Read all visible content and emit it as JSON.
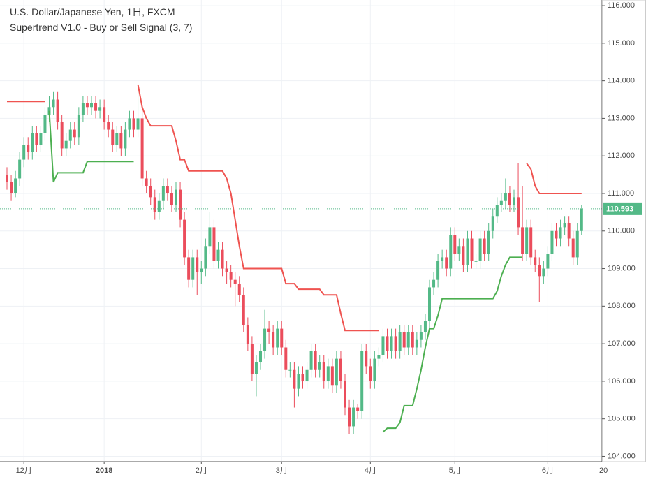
{
  "chart_data": {
    "type": "candlestick",
    "title": "U.S. Dollar/Japanese Yen, 1日, FXCM",
    "subtitle": "Supertrend V1.0 - Buy or Sell Signal (3, 7)",
    "categories": [
      null,
      null,
      null,
      null,
      "12月",
      null,
      null,
      null,
      null,
      null,
      null,
      null,
      null,
      null,
      null,
      null,
      null,
      null,
      null,
      null,
      null,
      null,
      null,
      "2018",
      null,
      null,
      null,
      null,
      null,
      null,
      null,
      null,
      null,
      null,
      null,
      null,
      null,
      null,
      null,
      null,
      null,
      null,
      null,
      null,
      null,
      null,
      "2月",
      null,
      null,
      null,
      null,
      null,
      null,
      null,
      null,
      null,
      null,
      null,
      null,
      null,
      null,
      null,
      null,
      null,
      null,
      "3月",
      null,
      null,
      null,
      null,
      null,
      null,
      null,
      null,
      null,
      null,
      null,
      null,
      null,
      null,
      null,
      null,
      null,
      null,
      null,
      null,
      "4月",
      null,
      null,
      null,
      null,
      null,
      null,
      null,
      null,
      null,
      null,
      null,
      null,
      null,
      null,
      null,
      null,
      null,
      null,
      null,
      "5月",
      null,
      null,
      null,
      null,
      null,
      null,
      null,
      null,
      null,
      null,
      null,
      null,
      null,
      null,
      null,
      null,
      null,
      null,
      null,
      null,
      null,
      "6月",
      null,
      null,
      null,
      null,
      null,
      null,
      null,
      null
    ],
    "x_edge_label": "20",
    "ohlc": [
      [
        111.5,
        111.7,
        111.1,
        111.3
      ],
      [
        111.3,
        111.5,
        110.8,
        111.0
      ],
      [
        111.0,
        111.6,
        110.9,
        111.4
      ],
      [
        111.4,
        112.1,
        111.2,
        111.9
      ],
      [
        111.9,
        112.5,
        111.7,
        112.3
      ],
      [
        112.3,
        112.5,
        111.9,
        112.1
      ],
      [
        112.1,
        112.8,
        111.9,
        112.6
      ],
      [
        112.6,
        112.8,
        112.1,
        112.3
      ],
      [
        112.3,
        112.8,
        112.1,
        112.6
      ],
      [
        112.6,
        113.3,
        112.4,
        113.1
      ],
      [
        113.1,
        113.6,
        112.9,
        113.3
      ],
      [
        113.3,
        113.7,
        113.1,
        113.5
      ],
      [
        113.5,
        113.7,
        112.7,
        112.9
      ],
      [
        112.9,
        113.1,
        112.0,
        112.2
      ],
      [
        112.2,
        112.6,
        112.0,
        112.4
      ],
      [
        112.4,
        112.9,
        112.2,
        112.7
      ],
      [
        112.7,
        112.9,
        112.3,
        112.5
      ],
      [
        112.5,
        113.3,
        112.3,
        113.1
      ],
      [
        113.1,
        113.6,
        112.9,
        113.4
      ],
      [
        113.4,
        113.6,
        113.1,
        113.3
      ],
      [
        113.3,
        113.6,
        113.1,
        113.4
      ],
      [
        113.4,
        113.6,
        113.0,
        113.2
      ],
      [
        113.2,
        113.5,
        113.0,
        113.3
      ],
      [
        113.3,
        113.5,
        112.7,
        112.9
      ],
      [
        112.9,
        113.1,
        112.5,
        112.7
      ],
      [
        112.7,
        112.9,
        112.1,
        112.3
      ],
      [
        112.3,
        112.8,
        112.1,
        112.6
      ],
      [
        112.6,
        112.8,
        112.0,
        112.2
      ],
      [
        112.2,
        112.9,
        112.0,
        112.7
      ],
      [
        112.7,
        113.2,
        112.5,
        113.0
      ],
      [
        113.0,
        113.2,
        112.5,
        112.7
      ],
      [
        112.7,
        113.9,
        112.5,
        113.0
      ],
      [
        113.0,
        113.2,
        111.2,
        111.4
      ],
      [
        111.4,
        111.6,
        111.0,
        111.2
      ],
      [
        111.2,
        111.4,
        110.7,
        110.9
      ],
      [
        110.9,
        111.1,
        110.3,
        110.5
      ],
      [
        110.5,
        111.0,
        110.3,
        110.8
      ],
      [
        110.8,
        111.4,
        110.6,
        111.2
      ],
      [
        111.2,
        111.4,
        110.8,
        111.0
      ],
      [
        111.0,
        111.2,
        110.5,
        110.7
      ],
      [
        110.7,
        111.3,
        110.5,
        111.1
      ],
      [
        111.1,
        111.3,
        110.1,
        110.3
      ],
      [
        110.3,
        110.5,
        109.1,
        109.3
      ],
      [
        109.3,
        109.5,
        108.5,
        108.7
      ],
      [
        108.7,
        109.5,
        108.5,
        109.3
      ],
      [
        109.3,
        109.5,
        108.3,
        108.9
      ],
      [
        108.9,
        109.2,
        108.6,
        109.0
      ],
      [
        109.0,
        109.8,
        108.8,
        109.6
      ],
      [
        109.6,
        110.5,
        109.4,
        110.1
      ],
      [
        110.1,
        110.3,
        109.0,
        109.2
      ],
      [
        109.2,
        109.7,
        109.0,
        109.5
      ],
      [
        109.5,
        109.7,
        108.8,
        109.0
      ],
      [
        109.0,
        109.2,
        108.6,
        108.9
      ],
      [
        108.9,
        109.1,
        108.5,
        108.7
      ],
      [
        108.7,
        108.9,
        108.0,
        108.6
      ],
      [
        108.6,
        108.8,
        108.1,
        108.3
      ],
      [
        108.3,
        108.5,
        107.3,
        107.5
      ],
      [
        107.5,
        107.7,
        106.8,
        107.0
      ],
      [
        107.0,
        107.2,
        106.0,
        106.2
      ],
      [
        106.2,
        106.7,
        105.6,
        106.5
      ],
      [
        106.5,
        107.0,
        106.3,
        106.8
      ],
      [
        106.8,
        107.9,
        106.6,
        107.4
      ],
      [
        107.4,
        107.6,
        107.0,
        107.3
      ],
      [
        107.3,
        107.5,
        106.7,
        106.9
      ],
      [
        106.9,
        107.6,
        106.7,
        107.4
      ],
      [
        107.4,
        107.6,
        106.7,
        106.9
      ],
      [
        106.9,
        107.1,
        106.1,
        106.3
      ],
      [
        106.3,
        106.5,
        106.1,
        106.3
      ],
      [
        106.3,
        106.5,
        105.3,
        105.8
      ],
      [
        105.8,
        106.4,
        105.6,
        106.2
      ],
      [
        106.2,
        106.4,
        105.8,
        106.0
      ],
      [
        106.0,
        106.5,
        105.8,
        106.3
      ],
      [
        106.3,
        107.0,
        106.1,
        106.8
      ],
      [
        106.8,
        107.0,
        106.1,
        106.3
      ],
      [
        106.3,
        106.7,
        106.1,
        106.5
      ],
      [
        106.5,
        106.7,
        105.8,
        106.0
      ],
      [
        106.0,
        106.6,
        105.8,
        106.4
      ],
      [
        106.4,
        106.6,
        105.7,
        105.9
      ],
      [
        105.9,
        106.8,
        105.7,
        106.6
      ],
      [
        106.6,
        106.8,
        105.8,
        106.0
      ],
      [
        106.0,
        106.2,
        105.1,
        105.3
      ],
      [
        105.3,
        105.5,
        104.6,
        104.8
      ],
      [
        104.8,
        105.5,
        104.6,
        105.3
      ],
      [
        105.3,
        105.4,
        105.0,
        105.2
      ],
      [
        105.2,
        107.0,
        105.0,
        106.8
      ],
      [
        106.8,
        107.0,
        106.2,
        106.4
      ],
      [
        106.4,
        106.6,
        105.8,
        106.0
      ],
      [
        106.0,
        106.8,
        105.8,
        106.6
      ],
      [
        106.6,
        106.9,
        106.4,
        106.7
      ],
      [
        106.7,
        107.4,
        106.5,
        107.2
      ],
      [
        107.2,
        107.4,
        106.6,
        106.8
      ],
      [
        106.8,
        107.4,
        106.6,
        107.2
      ],
      [
        107.2,
        107.4,
        106.6,
        106.8
      ],
      [
        106.8,
        107.5,
        106.6,
        107.3
      ],
      [
        107.3,
        107.5,
        106.7,
        106.9
      ],
      [
        106.9,
        107.5,
        106.7,
        107.3
      ],
      [
        107.3,
        107.5,
        106.7,
        106.9
      ],
      [
        106.9,
        107.3,
        106.7,
        107.1
      ],
      [
        107.1,
        107.5,
        106.9,
        107.3
      ],
      [
        107.3,
        107.8,
        107.1,
        107.6
      ],
      [
        107.6,
        108.7,
        107.4,
        108.5
      ],
      [
        108.5,
        108.9,
        108.3,
        108.7
      ],
      [
        108.7,
        109.4,
        108.5,
        109.2
      ],
      [
        109.2,
        109.5,
        109.0,
        109.3
      ],
      [
        109.3,
        109.5,
        108.8,
        109.0
      ],
      [
        109.0,
        110.1,
        108.8,
        109.9
      ],
      [
        109.9,
        110.1,
        109.2,
        109.4
      ],
      [
        109.4,
        109.8,
        109.2,
        109.6
      ],
      [
        109.6,
        109.8,
        108.9,
        109.1
      ],
      [
        109.1,
        110.0,
        108.9,
        109.8
      ],
      [
        109.8,
        110.0,
        109.0,
        109.2
      ],
      [
        109.2,
        109.4,
        109.0,
        109.2
      ],
      [
        109.2,
        110.0,
        109.0,
        109.8
      ],
      [
        109.8,
        110.0,
        109.2,
        109.4
      ],
      [
        109.4,
        110.2,
        109.2,
        110.0
      ],
      [
        110.0,
        110.6,
        109.8,
        110.4
      ],
      [
        110.4,
        110.9,
        110.2,
        110.7
      ],
      [
        110.7,
        111.0,
        110.5,
        110.8
      ],
      [
        110.8,
        111.4,
        110.6,
        111.0
      ],
      [
        111.0,
        111.2,
        110.5,
        110.7
      ],
      [
        110.7,
        111.1,
        110.5,
        110.9
      ],
      [
        110.9,
        111.8,
        109.9,
        110.1
      ],
      [
        110.1,
        111.2,
        109.2,
        109.4
      ],
      [
        109.4,
        110.3,
        109.2,
        110.1
      ],
      [
        110.1,
        110.3,
        109.1,
        109.3
      ],
      [
        109.3,
        109.5,
        108.9,
        109.1
      ],
      [
        109.1,
        109.3,
        108.1,
        108.8
      ],
      [
        108.8,
        109.2,
        108.6,
        109.0
      ],
      [
        109.0,
        109.6,
        108.8,
        109.4
      ],
      [
        109.4,
        110.2,
        109.2,
        110.0
      ],
      [
        110.0,
        110.2,
        109.6,
        109.8
      ],
      [
        109.8,
        110.3,
        109.6,
        110.1
      ],
      [
        110.1,
        110.4,
        109.9,
        110.2
      ],
      [
        110.2,
        110.4,
        109.6,
        109.8
      ],
      [
        109.8,
        110.0,
        109.1,
        109.3
      ],
      [
        109.3,
        110.2,
        109.1,
        110.0
      ],
      [
        110.0,
        110.7,
        109.9,
        110.59
      ]
    ],
    "up_color": "#53b987",
    "down_color": "#eb4d5c",
    "upper_band": {
      "color": "#ef5350",
      "values": [
        113.45,
        113.45,
        113.45,
        113.45,
        113.45,
        113.45,
        113.45,
        113.45,
        113.45,
        113.45,
        null,
        null,
        null,
        null,
        null,
        null,
        null,
        null,
        null,
        null,
        null,
        null,
        null,
        null,
        null,
        null,
        null,
        null,
        null,
        null,
        null,
        113.9,
        113.3,
        113.0,
        112.8,
        112.8,
        112.8,
        112.8,
        112.8,
        112.8,
        112.4,
        111.9,
        111.9,
        111.6,
        111.6,
        111.6,
        111.6,
        111.6,
        111.6,
        111.6,
        111.6,
        111.6,
        111.4,
        111.0,
        110.3,
        109.6,
        109.0,
        109.0,
        109.0,
        109.0,
        109.0,
        109.0,
        109.0,
        109.0,
        109.0,
        109.0,
        108.6,
        108.6,
        108.6,
        108.45,
        108.45,
        108.45,
        108.45,
        108.45,
        108.45,
        108.3,
        108.3,
        108.3,
        108.3,
        107.8,
        107.35,
        107.35,
        107.35,
        107.35,
        107.35,
        107.35,
        107.35,
        107.35,
        107.35,
        null,
        null,
        null,
        null,
        null,
        null,
        null,
        null,
        null,
        null,
        null,
        null,
        null,
        null,
        null,
        null,
        null,
        null,
        null,
        null,
        null,
        null,
        null,
        null,
        null,
        null,
        null,
        null,
        null,
        null,
        null,
        null,
        null,
        null,
        111.8,
        111.65,
        111.2,
        111.0,
        111.0,
        111.0,
        111.0,
        111.0,
        111.0,
        111.0,
        111.0,
        111.0,
        111.0,
        111.0
      ]
    },
    "lower_band": {
      "color": "#4caf50",
      "values": [
        null,
        null,
        null,
        null,
        null,
        null,
        null,
        null,
        null,
        null,
        113.2,
        111.3,
        111.55,
        111.55,
        111.55,
        111.55,
        111.55,
        111.55,
        111.55,
        111.85,
        111.85,
        111.85,
        111.85,
        111.85,
        111.85,
        111.85,
        111.85,
        111.85,
        111.85,
        111.85,
        111.85,
        null,
        null,
        null,
        null,
        null,
        null,
        null,
        null,
        null,
        null,
        null,
        null,
        null,
        null,
        null,
        null,
        null,
        null,
        null,
        null,
        null,
        null,
        null,
        null,
        null,
        null,
        null,
        null,
        null,
        null,
        null,
        null,
        null,
        null,
        null,
        null,
        null,
        null,
        null,
        null,
        null,
        null,
        null,
        null,
        null,
        null,
        null,
        null,
        null,
        null,
        null,
        null,
        null,
        null,
        null,
        null,
        null,
        null,
        104.65,
        104.75,
        104.75,
        104.75,
        104.9,
        105.35,
        105.35,
        105.35,
        105.8,
        106.3,
        106.9,
        107.4,
        107.4,
        107.75,
        108.2,
        108.2,
        108.2,
        108.2,
        108.2,
        108.2,
        108.2,
        108.2,
        108.2,
        108.2,
        108.2,
        108.2,
        108.2,
        108.4,
        108.8,
        109.1,
        109.3,
        109.3,
        109.3,
        109.3,
        null,
        null,
        null,
        null,
        null,
        null,
        null,
        null,
        null,
        null,
        null,
        null,
        null,
        null
      ]
    },
    "current_price": {
      "value": 110.593,
      "label": "110.593",
      "color": "#53b987"
    },
    "ylim": [
      103.86,
      116.15
    ],
    "yticks": [
      {
        "value": 104,
        "label": "104.000"
      },
      {
        "value": 105,
        "label": "105.000"
      },
      {
        "value": 106,
        "label": "106.000"
      },
      {
        "value": 107,
        "label": "107.000"
      },
      {
        "value": 108,
        "label": "108.000"
      },
      {
        "value": 109,
        "label": "109.000"
      },
      {
        "value": 110,
        "label": "110.000"
      },
      {
        "value": 111,
        "label": "111.000"
      },
      {
        "value": 112,
        "label": "112.000"
      },
      {
        "value": 113,
        "label": "113.000"
      },
      {
        "value": 114,
        "label": "114.000"
      },
      {
        "value": 115,
        "label": "115.000"
      },
      {
        "value": 116,
        "label": "116.000"
      }
    ],
    "grid": true
  }
}
